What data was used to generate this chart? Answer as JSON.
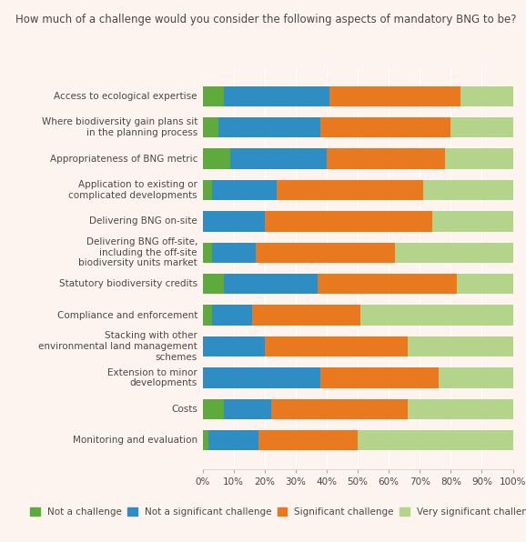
{
  "title": "How much of a challenge would you consider the following aspects of mandatory BNG to be?",
  "categories": [
    "Access to ecological expertise",
    "Where biodiversity gain plans sit\nin the planning process",
    "Appropriateness of BNG metric",
    "Application to existing or\ncomplicated developments",
    "Delivering BNG on-site",
    "Delivering BNG off-site,\nincluding the off-site\nbiodiversity units market",
    "Statutory biodiversity credits",
    "Compliance and enforcement",
    "Stacking with other\nenvironmental land management\nschemes",
    "Extension to minor\ndevelopments",
    "Costs",
    "Monitoring and evaluation"
  ],
  "series": {
    "Not a challenge": [
      7,
      5,
      9,
      3,
      0,
      3,
      7,
      3,
      0,
      0,
      7,
      2
    ],
    "Not a significant challenge": [
      34,
      33,
      31,
      21,
      20,
      14,
      30,
      13,
      20,
      38,
      15,
      16
    ],
    "Significant challenge": [
      42,
      42,
      38,
      47,
      54,
      45,
      45,
      35,
      46,
      38,
      44,
      32
    ],
    "Very significant challenge": [
      17,
      20,
      22,
      29,
      26,
      38,
      18,
      49,
      34,
      24,
      34,
      50
    ]
  },
  "colors": {
    "Not a challenge": "#5faa3c",
    "Not a significant challenge": "#2e8ec4",
    "Significant challenge": "#e8791e",
    "Very significant challenge": "#b5d48b"
  },
  "background_color": "#fdf4ef",
  "text_color": "#4a4845",
  "title_fontsize": 8.5,
  "label_fontsize": 7.5,
  "tick_fontsize": 7.5,
  "legend_fontsize": 7.5
}
